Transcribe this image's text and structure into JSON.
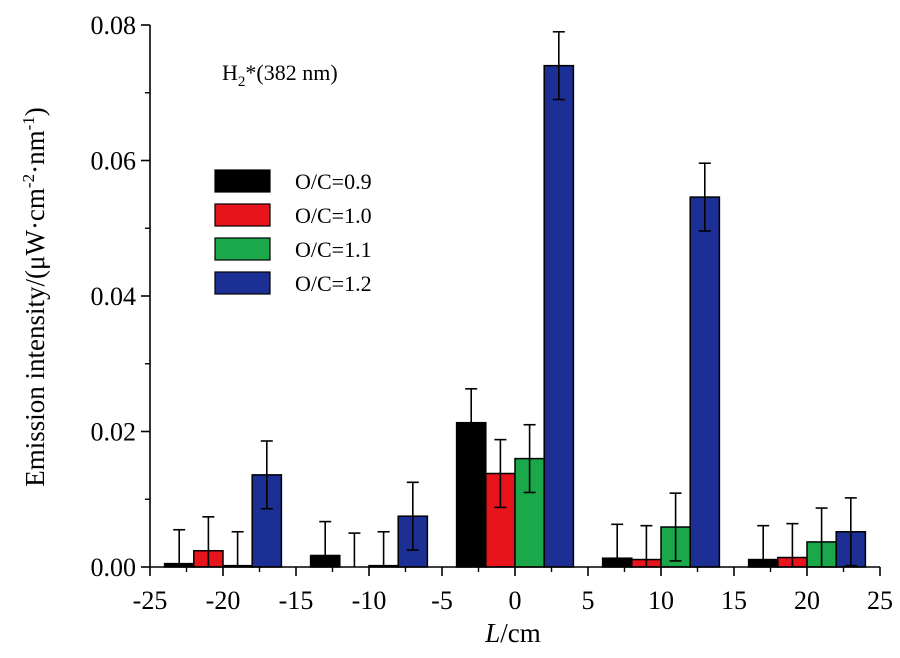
{
  "chart_data": {
    "type": "bar",
    "xlabel": {
      "italic": "L",
      "rest": "/cm"
    },
    "ylabel": {
      "main": "Emission intensity/(μW·cm",
      "sup1": "-2",
      "mid": "·nm",
      "sup2": "-1",
      "end": ")"
    },
    "annotation": {
      "base": "H",
      "sub": "2",
      "rest": "*(382 nm)"
    },
    "xlim": [
      -25,
      25
    ],
    "ylim": [
      0,
      0.08
    ],
    "xticks": [
      "-25",
      "-20",
      "-15",
      "-10",
      "-5",
      "0",
      "5",
      "10",
      "15",
      "20",
      "25"
    ],
    "yticks": [
      "0.00",
      "0.02",
      "0.04",
      "0.06",
      "0.08"
    ],
    "grid": false,
    "legend_position": "upper-left",
    "group_centers": [
      -20,
      -10,
      0,
      10,
      20
    ],
    "series": [
      {
        "name": "O/C=0.9",
        "color": "#000000",
        "values": [
          0.0005,
          0.0017,
          0.0213,
          0.0013,
          0.0011
        ],
        "errors": [
          0.005,
          0.005,
          0.005,
          0.005,
          0.005
        ]
      },
      {
        "name": "O/C=1.0",
        "color": "#e8141c",
        "values": [
          0.0024,
          0.0,
          0.0138,
          0.0011,
          0.0014
        ],
        "errors": [
          0.005,
          0.005,
          0.005,
          0.005,
          0.005
        ]
      },
      {
        "name": "O/C=1.1",
        "color": "#1aa84a",
        "values": [
          0.0002,
          0.0002,
          0.016,
          0.0059,
          0.0037
        ],
        "errors": [
          0.005,
          0.005,
          0.005,
          0.005,
          0.005
        ]
      },
      {
        "name": "O/C=1.2",
        "color": "#1c2f94",
        "values": [
          0.0136,
          0.0075,
          0.074,
          0.0546,
          0.0052
        ],
        "errors": [
          0.005,
          0.005,
          0.005,
          0.005,
          0.005
        ]
      }
    ]
  }
}
